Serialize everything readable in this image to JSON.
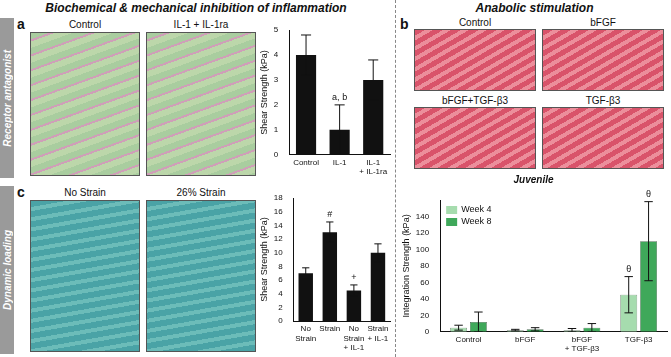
{
  "figure": {
    "left_header": "Biochemical & mechanical inhibition of inflammation",
    "right_header": "Anabolic stimulation",
    "panels": [
      {
        "letter": "a",
        "side_label": "Receptor antagonist",
        "images": [
          "Control",
          "IL-1 + IL-1ra"
        ]
      },
      {
        "letter": "c",
        "side_label": "Dynamic loading",
        "images": [
          "No Strain",
          "26% Strain"
        ]
      },
      {
        "letter": "b",
        "images": [
          "Control",
          "bFGF",
          "bFGF+TGF-β3",
          "TGF-β3"
        ]
      }
    ]
  },
  "chart_data": [
    {
      "type": "bar",
      "y_label": "Shear Strength (kPa)",
      "categories": [
        "Control",
        "IL-1",
        "IL-1 + IL-1ra"
      ],
      "values": [
        4,
        1,
        3
      ],
      "errors": [
        0.8,
        1.0,
        0.8
      ],
      "color": "#111111",
      "ylim": [
        0,
        5
      ],
      "yticks": [
        0,
        1,
        2,
        3,
        4,
        5
      ],
      "grid": false,
      "annotations": [
        {
          "category": "IL-1",
          "text": "a, b"
        }
      ]
    },
    {
      "type": "bar",
      "y_label": "Shear Strength (kPa)",
      "categories": [
        "No Strain",
        "Strain",
        "No Strain + IL-1",
        "Strain + IL-1"
      ],
      "values": [
        7,
        13,
        4.5,
        10
      ],
      "errors": [
        0.8,
        1.5,
        0.8,
        1.3
      ],
      "color": "#111111",
      "ylim": [
        0,
        18
      ],
      "yticks": [
        0,
        2,
        4,
        6,
        8,
        10,
        12,
        14,
        16,
        18
      ],
      "grid": false,
      "annotations": [
        {
          "category": "Strain",
          "text": "#"
        },
        {
          "category": "No Strain + IL-1",
          "text": "+"
        }
      ]
    },
    {
      "type": "bar",
      "title": "Juvenile",
      "y_label": "Integration Strength (kPa)",
      "categories": [
        "Control",
        "bFGF",
        "bFGF + TGF-β3",
        "TGF-β3"
      ],
      "series": [
        {
          "name": "Week 4",
          "color": "#a6dcae",
          "values": [
            5,
            2,
            2,
            45
          ],
          "errors": [
            3,
            1,
            2,
            22
          ]
        },
        {
          "name": "Week 8",
          "color": "#3fa85a",
          "values": [
            12,
            3,
            5,
            110
          ],
          "errors": [
            12,
            2,
            5,
            48
          ]
        }
      ],
      "ylim": [
        0,
        160
      ],
      "yticks": [
        0,
        20,
        40,
        60,
        80,
        100,
        120,
        140
      ],
      "grid": false,
      "legend": "upper left",
      "annotations": [
        {
          "category": "TGF-β3",
          "series": "Week 4",
          "text": "θ"
        },
        {
          "category": "TGF-β3",
          "series": "Week 8",
          "text": "θ"
        }
      ]
    }
  ]
}
